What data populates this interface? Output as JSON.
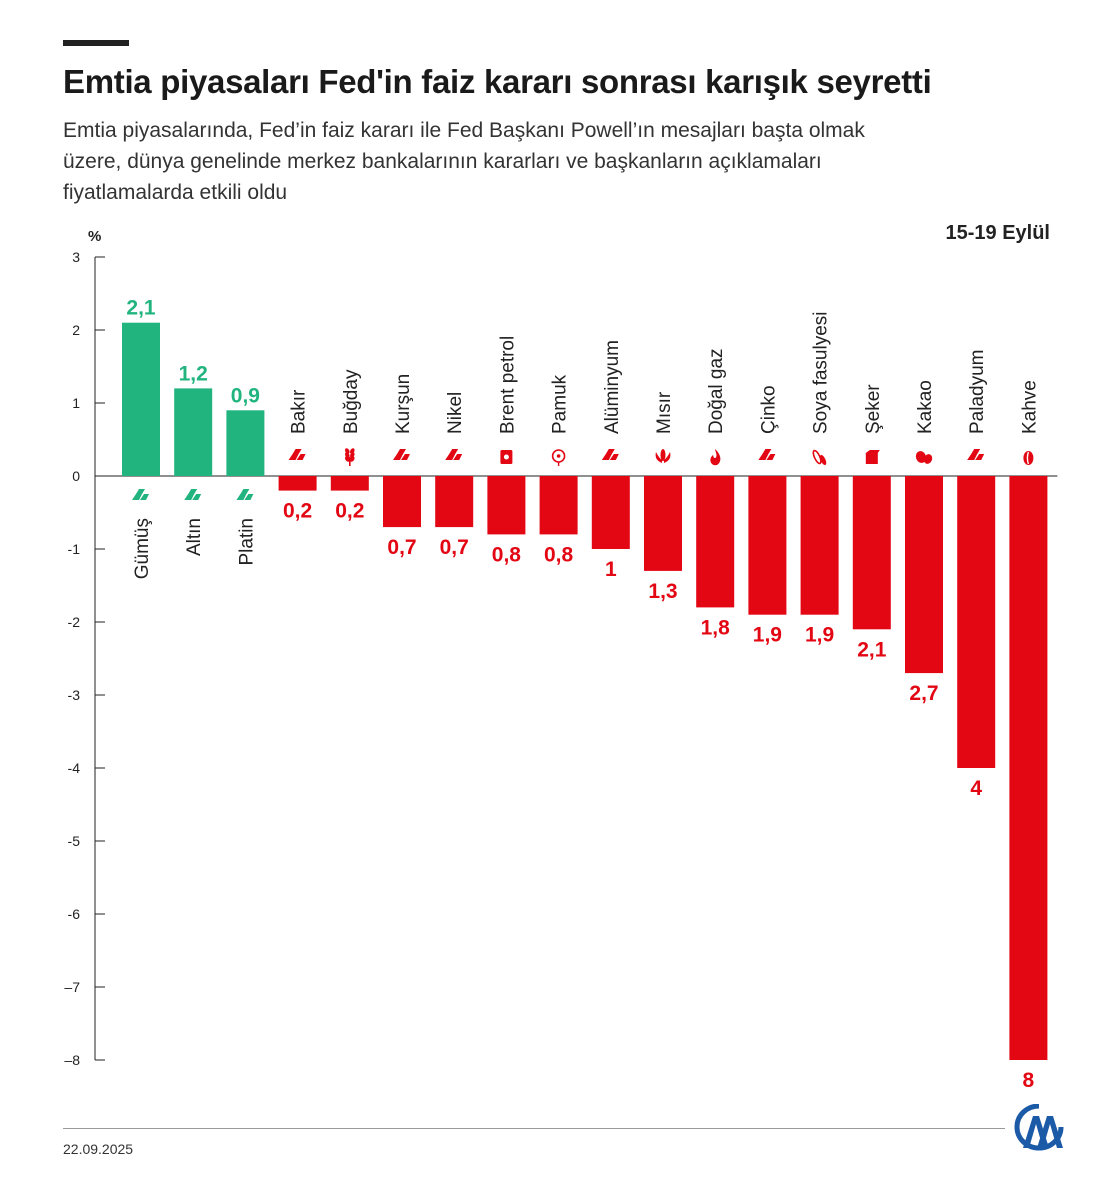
{
  "header": {
    "title": "Emtia piyasaları Fed'in faiz kararı sonrası karışık seyretti",
    "subtitle": "Emtia piyasalarında, Fed’in faiz kararı ile Fed Başkanı Powell’ın mesajları başta olmak üzere, dünya genelinde merkez bankalarının kararları ve başkanların açıklamaları fiyatlamalarda etkili oldu",
    "period": "15-19 Eylül"
  },
  "footer": {
    "date": "22.09.2025",
    "logo_text": "AA"
  },
  "colors": {
    "positive": "#21b47e",
    "negative": "#e30613",
    "axis": "#222222"
  },
  "chart_data": {
    "type": "bar",
    "ylabel": "%",
    "ylim": [
      -8,
      3
    ],
    "yticks": [
      3,
      2,
      1,
      0,
      -1,
      -2,
      -3,
      -4,
      -5,
      -6,
      -7,
      -8
    ],
    "ytick_labels": [
      "3",
      "2",
      "1",
      "0",
      "-1",
      "-2",
      "-3",
      "-4",
      "-5",
      "-6",
      "–7",
      "–8"
    ],
    "grid": false,
    "categories": [
      "Gümüş",
      "Altın",
      "Platin",
      "Bakır",
      "Buğday",
      "Kurşun",
      "Nikel",
      "Brent petrol",
      "Pamuk",
      "Alüminyum",
      "Mısır",
      "Doğal gaz",
      "Çinko",
      "Soya fasulyesi",
      "Şeker",
      "Kakao",
      "Paladyum",
      "Kahve"
    ],
    "values": [
      2.1,
      1.2,
      0.9,
      -0.2,
      -0.2,
      -0.7,
      -0.7,
      -0.8,
      -0.8,
      -1,
      -1.3,
      -1.8,
      -1.9,
      -1.9,
      -2.1,
      -2.7,
      -4,
      -8
    ],
    "value_labels": [
      "2,1",
      "1,2",
      "0,9",
      "0,2",
      "0,2",
      "0,7",
      "0,7",
      "0,8",
      "0,8",
      "1",
      "1,3",
      "1,8",
      "1,9",
      "1,9",
      "2,1",
      "2,7",
      "4",
      "8"
    ],
    "icons": [
      "bullion-icon",
      "bullion-icon",
      "bullion-icon",
      "bullion-icon",
      "wheat-icon",
      "bullion-icon",
      "bullion-icon",
      "oil-barrel-icon",
      "cotton-icon",
      "bullion-icon",
      "corn-icon",
      "flame-icon",
      "bullion-icon",
      "soybean-icon",
      "sugar-cube-icon",
      "cocoa-pod-icon",
      "bullion-icon",
      "coffee-bean-icon"
    ]
  }
}
